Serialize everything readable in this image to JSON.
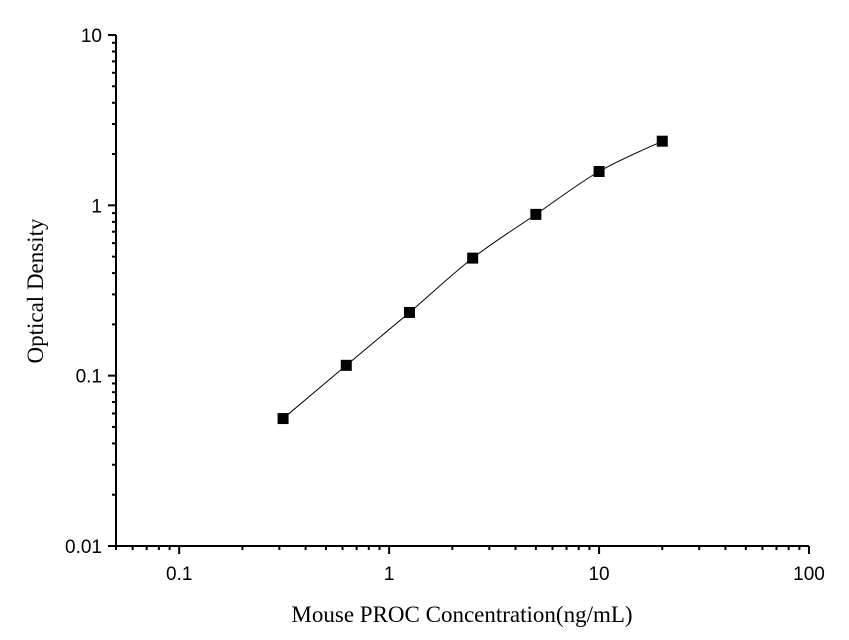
{
  "chart_data": {
    "type": "scatter",
    "title": "",
    "xlabel": "Mouse PROC Concentration(ng/mL)",
    "ylabel": "Optical Density",
    "x_scale": "log",
    "y_scale": "log",
    "xlim": [
      0.05,
      100
    ],
    "ylim": [
      0.01,
      10
    ],
    "x_ticks": [
      "0.1",
      "1",
      "10",
      "100"
    ],
    "y_ticks": [
      "0.01",
      "0.1",
      "1",
      "10"
    ],
    "grid": false,
    "legend": "none",
    "marker": "square",
    "color": "#000000",
    "fit_curve": true,
    "series": [
      {
        "x": [
          0.3125,
          0.625,
          1.25,
          2.5,
          5,
          10,
          20
        ],
        "y": [
          0.056,
          0.115,
          0.235,
          0.49,
          0.885,
          1.58,
          2.38
        ]
      }
    ]
  }
}
